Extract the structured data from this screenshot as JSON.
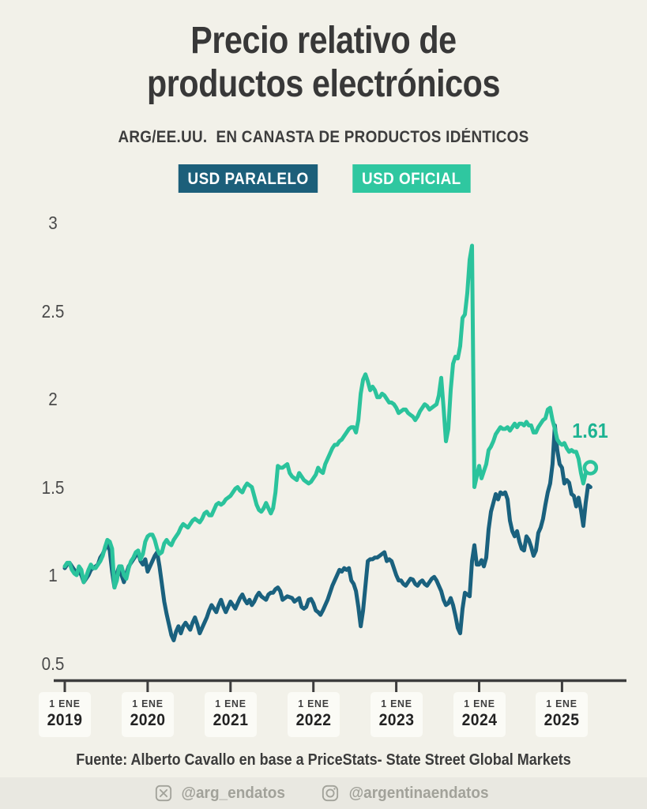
{
  "page": {
    "background": "#f2f1e9",
    "band_background": "#e9e8e1"
  },
  "header": {
    "title_line1": "Precio relativo de",
    "title_line2": "productos electrónicos",
    "subtitle": "ARG/EE.UU.  EN CANASTA DE PRODUCTOS IDÉNTICOS"
  },
  "legend": [
    {
      "label": "USD PARALELO",
      "color": "#1c5f7a"
    },
    {
      "label": "USD OFICIAL",
      "color": "#2fc7a0"
    }
  ],
  "chart_data": {
    "type": "line",
    "title": "Precio relativo de productos electrónicos",
    "subtitle": "ARG/EE.UU. en canasta de productos idénticos",
    "grid": false,
    "axis_color": "#3d3d3d",
    "x_start_year": 2019,
    "samples_per_year": 35,
    "ylim": [
      0.45,
      3.05
    ],
    "y_ticks": [
      "3",
      "2.5",
      "2",
      "1.5",
      "1",
      "0.5"
    ],
    "y_tick_values": [
      3,
      2.5,
      2,
      1.5,
      1,
      0.5
    ],
    "x_tick_labels": [
      {
        "prefix": "1 ENE",
        "year": "2019"
      },
      {
        "prefix": "1 ENE",
        "year": "2020"
      },
      {
        "prefix": "1 ENE",
        "year": "2021"
      },
      {
        "prefix": "1 ENE",
        "year": "2022"
      },
      {
        "prefix": "1 ENE",
        "year": "2023"
      },
      {
        "prefix": "1 ENE",
        "year": "2024"
      },
      {
        "prefix": "1 ENE",
        "year": "2025"
      }
    ],
    "series": [
      {
        "name": "USD PARALELO",
        "color": "#1a617e",
        "values": [
          1.04,
          1.06,
          1.07,
          1.05,
          1.03,
          1.01,
          1.02,
          1.0,
          0.96,
          0.98,
          1.0,
          1.03,
          1.04,
          1.05,
          1.06,
          1.1,
          1.12,
          1.15,
          1.18,
          1.14,
          1.02,
          0.93,
          1.01,
          1.05,
          1.0,
          0.96,
          1.01,
          1.05,
          1.07,
          1.09,
          1.11,
          1.13,
          1.08,
          1.06,
          1.09,
          1.02,
          1.05,
          1.08,
          1.11,
          1.13,
          1.05,
          0.95,
          0.85,
          0.78,
          0.72,
          0.66,
          0.63,
          0.68,
          0.71,
          0.67,
          0.71,
          0.73,
          0.71,
          0.69,
          0.73,
          0.76,
          0.72,
          0.67,
          0.7,
          0.73,
          0.76,
          0.8,
          0.83,
          0.81,
          0.79,
          0.83,
          0.86,
          0.82,
          0.79,
          0.82,
          0.85,
          0.83,
          0.81,
          0.84,
          0.87,
          0.89,
          0.86,
          0.84,
          0.86,
          0.83,
          0.85,
          0.88,
          0.9,
          0.88,
          0.87,
          0.86,
          0.89,
          0.9,
          0.9,
          0.92,
          0.93,
          0.91,
          0.86,
          0.87,
          0.88,
          0.875,
          0.87,
          0.85,
          0.86,
          0.87,
          0.82,
          0.81,
          0.82,
          0.86,
          0.865,
          0.84,
          0.8,
          0.79,
          0.775,
          0.8,
          0.83,
          0.86,
          0.9,
          0.94,
          0.97,
          1.0,
          1.03,
          1.02,
          1.04,
          1.03,
          1.04,
          0.97,
          0.95,
          0.91,
          0.82,
          0.71,
          0.8,
          0.94,
          1.08,
          1.09,
          1.09,
          1.1,
          1.1,
          1.11,
          1.12,
          1.13,
          1.08,
          1.09,
          1.08,
          1.04,
          1.0,
          0.97,
          0.97,
          0.95,
          0.94,
          0.96,
          0.98,
          0.975,
          0.95,
          0.94,
          0.96,
          0.97,
          0.95,
          0.94,
          0.96,
          0.98,
          0.99,
          0.97,
          0.94,
          0.91,
          0.86,
          0.83,
          0.84,
          0.87,
          0.83,
          0.77,
          0.7,
          0.67,
          0.81,
          0.9,
          0.89,
          0.88,
          1.08,
          1.17,
          1.06,
          1.06,
          1.085,
          1.05,
          1.1,
          1.26,
          1.36,
          1.41,
          1.46,
          1.43,
          1.47,
          1.46,
          1.47,
          1.43,
          1.31,
          1.25,
          1.22,
          1.25,
          1.19,
          1.15,
          1.14,
          1.22,
          1.2,
          1.16,
          1.11,
          1.14,
          1.24,
          1.27,
          1.32,
          1.4,
          1.47,
          1.52,
          1.63,
          1.85,
          1.71,
          1.63,
          1.61,
          1.52,
          1.54,
          1.525,
          1.46,
          1.45,
          1.39,
          1.44,
          1.37,
          1.28,
          1.41,
          1.51,
          1.5
        ]
      },
      {
        "name": "USD OFICIAL",
        "color": "#2bc39c",
        "values": [
          1.05,
          1.07,
          1.07,
          1.03,
          1.01,
          1.0,
          1.05,
          1.03,
          0.96,
          0.99,
          1.03,
          1.06,
          1.04,
          1.04,
          1.06,
          1.08,
          1.11,
          1.16,
          1.2,
          1.19,
          1.15,
          0.93,
          0.97,
          1.05,
          1.05,
          1.0,
          0.98,
          1.04,
          1.08,
          1.1,
          1.13,
          1.14,
          1.09,
          1.12,
          1.19,
          1.22,
          1.23,
          1.23,
          1.2,
          1.15,
          1.12,
          1.13,
          1.18,
          1.2,
          1.18,
          1.17,
          1.2,
          1.22,
          1.24,
          1.27,
          1.29,
          1.28,
          1.27,
          1.29,
          1.31,
          1.32,
          1.31,
          1.3,
          1.32,
          1.35,
          1.36,
          1.34,
          1.34,
          1.37,
          1.4,
          1.41,
          1.4,
          1.41,
          1.43,
          1.44,
          1.45,
          1.47,
          1.49,
          1.5,
          1.48,
          1.47,
          1.5,
          1.52,
          1.51,
          1.5,
          1.45,
          1.4,
          1.37,
          1.36,
          1.38,
          1.41,
          1.38,
          1.35,
          1.38,
          1.47,
          1.62,
          1.61,
          1.61,
          1.62,
          1.63,
          1.58,
          1.56,
          1.55,
          1.54,
          1.58,
          1.56,
          1.54,
          1.53,
          1.52,
          1.53,
          1.55,
          1.57,
          1.61,
          1.59,
          1.58,
          1.63,
          1.66,
          1.69,
          1.72,
          1.74,
          1.74,
          1.76,
          1.77,
          1.79,
          1.81,
          1.83,
          1.84,
          1.84,
          1.81,
          1.88,
          2.03,
          2.11,
          2.14,
          2.1,
          2.05,
          2.07,
          2.05,
          2.01,
          2.01,
          2.03,
          2.02,
          2.0,
          1.98,
          1.98,
          1.97,
          1.95,
          1.92,
          1.93,
          1.94,
          1.94,
          1.92,
          1.91,
          1.9,
          1.88,
          1.9,
          1.93,
          1.95,
          1.97,
          1.96,
          1.94,
          1.95,
          1.96,
          1.97,
          2.02,
          2.12,
          1.95,
          1.76,
          1.83,
          2.05,
          2.2,
          2.24,
          2.23,
          2.3,
          2.46,
          2.48,
          2.6,
          2.79,
          2.87,
          1.5,
          1.56,
          1.62,
          1.55,
          1.59,
          1.63,
          1.71,
          1.73,
          1.76,
          1.8,
          1.82,
          1.84,
          1.83,
          1.83,
          1.84,
          1.82,
          1.84,
          1.86,
          1.84,
          1.86,
          1.86,
          1.85,
          1.87,
          1.85,
          1.85,
          1.81,
          1.81,
          1.84,
          1.86,
          1.88,
          1.89,
          1.94,
          1.95,
          1.88,
          1.83,
          1.77,
          1.75,
          1.74,
          1.75,
          1.72,
          1.7,
          1.71,
          1.7,
          1.7,
          1.66,
          1.58,
          1.52,
          1.58,
          1.6,
          1.61
        ]
      }
    ],
    "annotation": {
      "text": "1.61",
      "series": "USD OFICIAL",
      "color": "#1db392"
    }
  },
  "footer": {
    "source": "Fuente: Alberto Cavallo en base a PriceStats- State Street Global Markets"
  },
  "social": [
    {
      "icon": "x-logo",
      "handle": "@arg_endatos"
    },
    {
      "icon": "instagram-logo",
      "handle": "@argentinaendatos"
    }
  ]
}
